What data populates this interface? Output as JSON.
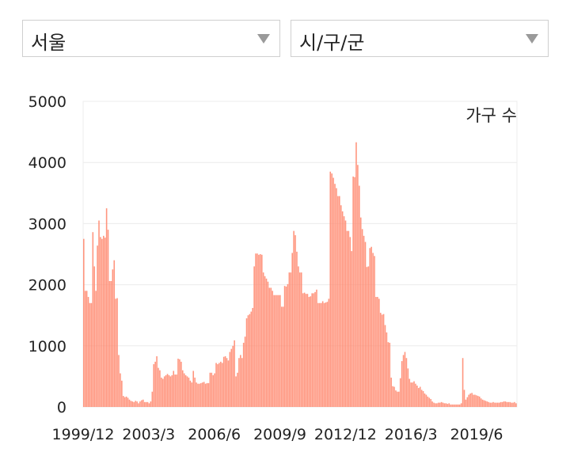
{
  "filters": {
    "region": {
      "value": "서울",
      "icon": "chevron-down-icon"
    },
    "district": {
      "value": "시/구/군",
      "icon": "chevron-down-icon"
    }
  },
  "chart_data": {
    "type": "bar",
    "legend": "가구 수",
    "bar_color": "#ff8a70",
    "grid": true,
    "ylim": [
      0,
      5000
    ],
    "y_ticks": [
      "0",
      "1000",
      "2000",
      "3000",
      "4000",
      "5000"
    ],
    "x_ticks": [
      "1999/12",
      "2003/3",
      "2006/6",
      "2009/9",
      "2012/12",
      "2016/3",
      "2019/6"
    ],
    "period_start": "1999/12",
    "period_end": "2021/6",
    "values": [
      2750,
      1900,
      1900,
      1800,
      1700,
      1700,
      2860,
      2300,
      1900,
      2640,
      3050,
      2780,
      2750,
      2800,
      2770,
      3250,
      2900,
      2060,
      2060,
      2250,
      2400,
      1770,
      1780,
      850,
      550,
      430,
      180,
      160,
      170,
      150,
      120,
      100,
      90,
      80,
      100,
      90,
      60,
      90,
      110,
      120,
      80,
      80,
      80,
      60,
      90,
      250,
      700,
      740,
      830,
      640,
      600,
      480,
      460,
      500,
      520,
      540,
      520,
      500,
      520,
      590,
      530,
      530,
      790,
      780,
      740,
      600,
      550,
      520,
      500,
      480,
      430,
      400,
      590,
      480,
      400,
      380,
      380,
      390,
      400,
      410,
      380,
      390,
      390,
      560,
      560,
      520,
      550,
      720,
      700,
      720,
      740,
      720,
      820,
      830,
      800,
      760,
      900,
      950,
      1000,
      1090,
      500,
      560,
      800,
      850,
      800,
      1050,
      1150,
      1450,
      1500,
      1520,
      1560,
      1620,
      2300,
      2510,
      2510,
      2490,
      2500,
      2490,
      2200,
      2140,
      2100,
      2050,
      1950,
      1950,
      1900,
      1830,
      1830,
      1830,
      1830,
      1830,
      1640,
      1640,
      1980,
      1970,
      2010,
      2200,
      2200,
      2520,
      2880,
      2810,
      2540,
      2300,
      2200,
      2200,
      1860,
      1870,
      1850,
      1850,
      1800,
      1810,
      1860,
      1860,
      1880,
      1920,
      1700,
      1700,
      1700,
      1730,
      1700,
      1710,
      1720,
      1770,
      3850,
      3820,
      3750,
      3650,
      3580,
      3450,
      3450,
      3300,
      3200,
      3120,
      3050,
      2880,
      2880,
      2780,
      2550,
      3770,
      3760,
      4330,
      3960,
      3620,
      3100,
      2910,
      2800,
      2700,
      2290,
      2300,
      2600,
      2620,
      2520,
      2470,
      1800,
      1800,
      1770,
      1540,
      1510,
      1520,
      1340,
      1220,
      1060,
      1050,
      480,
      340,
      330,
      270,
      250,
      250,
      470,
      750,
      850,
      900,
      800,
      630,
      460,
      400,
      400,
      420,
      380,
      350,
      310,
      330,
      280,
      260,
      220,
      200,
      170,
      150,
      130,
      90,
      70,
      60,
      60,
      70,
      70,
      80,
      70,
      60,
      60,
      50,
      60,
      40,
      40,
      40,
      40,
      40,
      40,
      40,
      60,
      800,
      280,
      120,
      160,
      200,
      220,
      230,
      200,
      200,
      190,
      180,
      170,
      140,
      120,
      110,
      100,
      90,
      80,
      70,
      70,
      80,
      70,
      70,
      70,
      70,
      80,
      80,
      90,
      90,
      80,
      80,
      80,
      70,
      70,
      80,
      60
    ]
  }
}
